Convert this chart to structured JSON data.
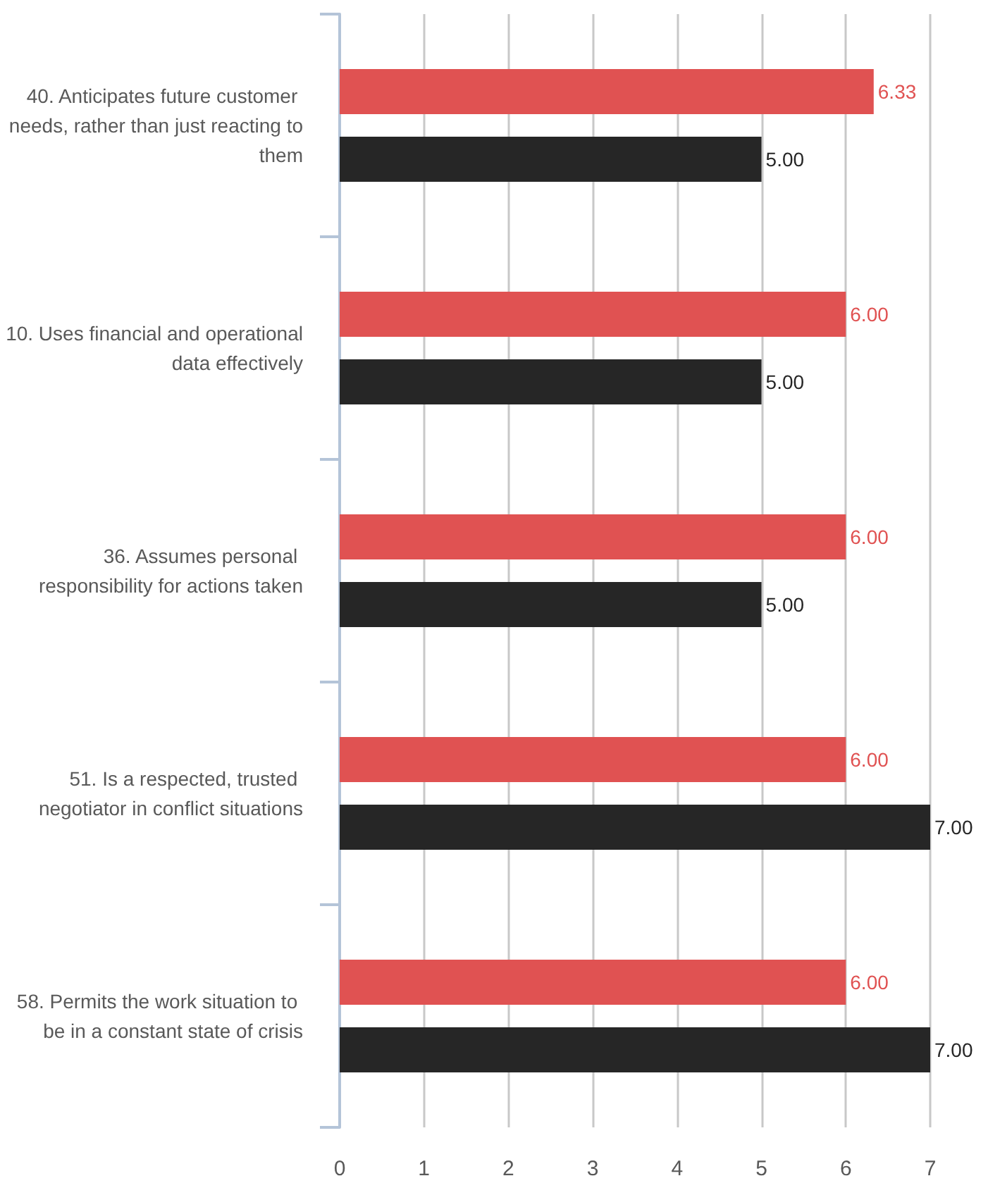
{
  "chart_data": {
    "type": "bar",
    "orientation": "horizontal",
    "categories": [
      "40. Anticipates future customer needs, rather than just reacting to them",
      "10. Uses financial and operational data effectively",
      "36. Assumes personal responsibility for actions taken",
      "51. Is a respected, trusted negotiator in conflict situations",
      "58. Permits the work situation to be in a constant state of crisis"
    ],
    "series": [
      {
        "color": "#e05252",
        "values": [
          6.33,
          6,
          6,
          6,
          6
        ],
        "value_labels": [
          "6.33",
          "6.00",
          "6.00",
          "6.00",
          "6.00"
        ]
      },
      {
        "color": "#262626",
        "values": [
          5,
          5,
          5,
          7,
          7
        ],
        "value_labels": [
          "5.00",
          "5.00",
          "5.00",
          "7.00",
          "7.00"
        ]
      }
    ],
    "xlim": [
      0,
      7
    ],
    "xticks": [
      0,
      1,
      2,
      3,
      4,
      5,
      6,
      7
    ],
    "grid": "x"
  }
}
